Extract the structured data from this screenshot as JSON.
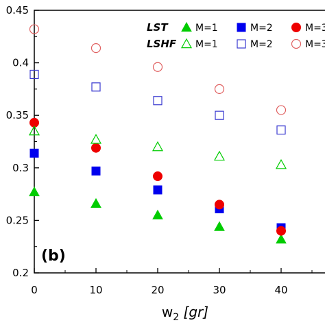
{
  "chart_data": {
    "type": "scatter",
    "panel_label": "(b)",
    "xlabel_main": "w",
    "xlabel_sub": "2",
    "xlabel_unit": " [gr]",
    "ylabel": "",
    "xlim": [
      0,
      50
    ],
    "ylim": [
      0.2,
      0.45
    ],
    "x_ticks": [
      "0",
      "10",
      "20",
      "30",
      "40"
    ],
    "y_ticks": [
      "0.2",
      "0.25",
      "0.3",
      "0.35",
      "0.4",
      "0.45"
    ],
    "x": [
      0,
      10,
      20,
      30,
      40
    ],
    "legend_groups": [
      "LST",
      "LSHF"
    ],
    "series": [
      {
        "name": "M=1",
        "group": "LST",
        "marker": "triangle",
        "filled": true,
        "color": "#00cc00",
        "values": [
          0.277,
          0.266,
          0.255,
          0.244,
          0.232
        ]
      },
      {
        "name": "M=2",
        "group": "LST",
        "marker": "square",
        "filled": true,
        "color": "#0000ee",
        "values": [
          0.314,
          0.297,
          0.279,
          0.261,
          0.243
        ]
      },
      {
        "name": "M=3",
        "group": "LST",
        "marker": "circle",
        "filled": true,
        "color": "#ee0000",
        "values": [
          0.343,
          0.319,
          0.292,
          0.265,
          0.24
        ]
      },
      {
        "name": "M=1",
        "group": "LSHF",
        "marker": "triangle",
        "filled": false,
        "color": "#00cc00",
        "values": [
          0.335,
          0.327,
          0.32,
          0.311,
          0.303
        ]
      },
      {
        "name": "M=2",
        "group": "LSHF",
        "marker": "square",
        "filled": false,
        "color": "#3a3ad0",
        "values": [
          0.389,
          0.377,
          0.364,
          0.35,
          0.336
        ]
      },
      {
        "name": "M=3",
        "group": "LSHF",
        "marker": "circle",
        "filled": false,
        "color": "#e06060",
        "values": [
          0.432,
          0.414,
          0.396,
          0.375,
          0.355
        ]
      }
    ],
    "legend_position": "top-right",
    "grid": false
  }
}
